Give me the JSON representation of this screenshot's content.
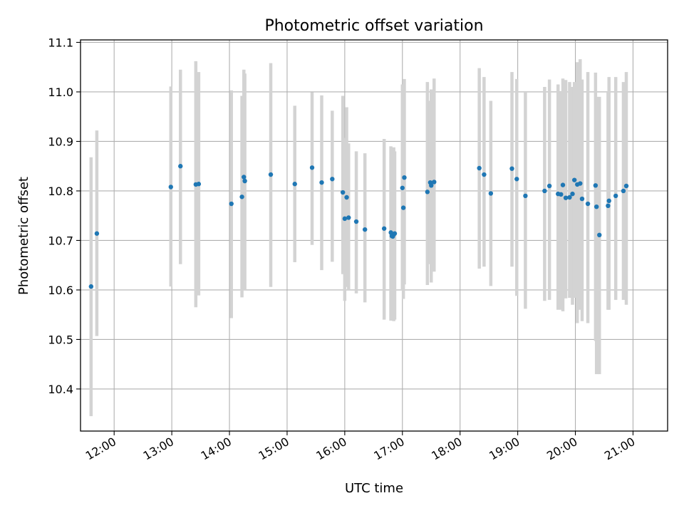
{
  "chart_data": {
    "type": "scatter",
    "title": "Photometric offset variation",
    "xlabel": "UTC time",
    "ylabel": "Photometric offset",
    "xlim": [
      "11:25",
      "21:36"
    ],
    "ylim": [
      10.315,
      11.105
    ],
    "x_ticks": [
      "12:00",
      "13:00",
      "14:00",
      "15:00",
      "16:00",
      "17:00",
      "18:00",
      "19:00",
      "20:00",
      "21:00"
    ],
    "y_ticks": [
      10.4,
      10.5,
      10.6,
      10.7,
      10.8,
      10.9,
      11.0,
      11.1
    ],
    "y_tick_labels": [
      "10.4",
      "10.5",
      "10.6",
      "10.7",
      "10.8",
      "10.9",
      "11.0",
      "11.1"
    ],
    "grid": true,
    "point_color": "#1f77b4",
    "errorbar_color": "#d3d3d3",
    "series": [
      {
        "x": [
          "11:36",
          "11:42",
          "12:59",
          "13:09",
          "13:25",
          "13:28",
          "14:02",
          "14:13",
          "14:15",
          "14:16",
          "14:43",
          "15:08",
          "15:26",
          "15:36",
          "15:47",
          "15:58",
          "16:00",
          "16:02",
          "16:04",
          "16:12",
          "16:21",
          "16:41",
          "16:48",
          "16:49",
          "16:50",
          "16:51",
          "16:52",
          "17:00",
          "17:01",
          "17:02",
          "17:26",
          "17:29",
          "17:30",
          "17:33",
          "18:20",
          "18:25",
          "18:32",
          "18:54",
          "18:59",
          "19:08",
          "19:28",
          "19:33",
          "19:42",
          "19:45",
          "19:47",
          "19:50",
          "19:54",
          "19:57",
          "19:59",
          "20:02",
          "20:05",
          "20:07",
          "20:13",
          "20:21",
          "20:22",
          "20:25",
          "20:34",
          "20:35",
          "20:42",
          "20:50",
          "20:53"
        ],
        "y": [
          10.607,
          10.714,
          10.808,
          10.85,
          10.813,
          10.814,
          10.774,
          10.788,
          10.828,
          10.82,
          10.833,
          10.814,
          10.847,
          10.817,
          10.824,
          10.797,
          10.744,
          10.787,
          10.746,
          10.738,
          10.722,
          10.724,
          10.716,
          10.709,
          10.708,
          10.712,
          10.714,
          10.806,
          10.766,
          10.827,
          10.798,
          10.817,
          10.811,
          10.818,
          10.846,
          10.833,
          10.795,
          10.845,
          10.824,
          10.79,
          10.8,
          10.81,
          10.794,
          10.793,
          10.812,
          10.786,
          10.787,
          10.794,
          10.822,
          10.813,
          10.815,
          10.784,
          10.774,
          10.811,
          10.768,
          10.711,
          10.77,
          10.78,
          10.79,
          10.8,
          10.81
        ],
        "yerr_low": [
          10.345,
          10.507,
          10.607,
          10.652,
          10.565,
          10.589,
          10.543,
          10.585,
          10.6,
          10.6,
          10.606,
          10.656,
          10.691,
          10.64,
          10.657,
          10.632,
          10.578,
          10.606,
          10.6,
          10.593,
          10.575,
          10.54,
          10.538,
          10.54,
          10.541,
          10.537,
          10.54,
          10.6,
          10.582,
          10.611,
          10.61,
          10.652,
          10.615,
          10.637,
          10.643,
          10.647,
          10.608,
          10.647,
          10.588,
          10.562,
          10.578,
          10.58,
          10.56,
          10.56,
          10.557,
          10.583,
          10.584,
          10.57,
          10.584,
          10.533,
          10.56,
          10.537,
          10.533,
          10.497,
          10.43,
          10.43,
          10.56,
          10.56,
          10.58,
          10.58,
          10.57
        ],
        "yerr_high": [
          10.868,
          10.922,
          11.011,
          11.045,
          11.062,
          11.04,
          11.003,
          10.992,
          11.045,
          11.037,
          11.058,
          10.972,
          10.999,
          10.993,
          10.962,
          10.992,
          10.907,
          10.969,
          10.896,
          10.88,
          10.876,
          10.905,
          10.89,
          10.87,
          10.86,
          10.888,
          10.88,
          11.015,
          10.95,
          11.026,
          11.02,
          10.982,
          11.005,
          11.027,
          11.048,
          11.03,
          10.982,
          11.04,
          11.026,
          11.0,
          11.01,
          11.025,
          11.015,
          11.0,
          11.027,
          11.024,
          11.02,
          11.01,
          11.02,
          11.06,
          11.066,
          11.025,
          11.04,
          11.039,
          10.99,
          10.99,
          11.0,
          11.03,
          11.03,
          11.02,
          11.04
        ]
      }
    ]
  }
}
